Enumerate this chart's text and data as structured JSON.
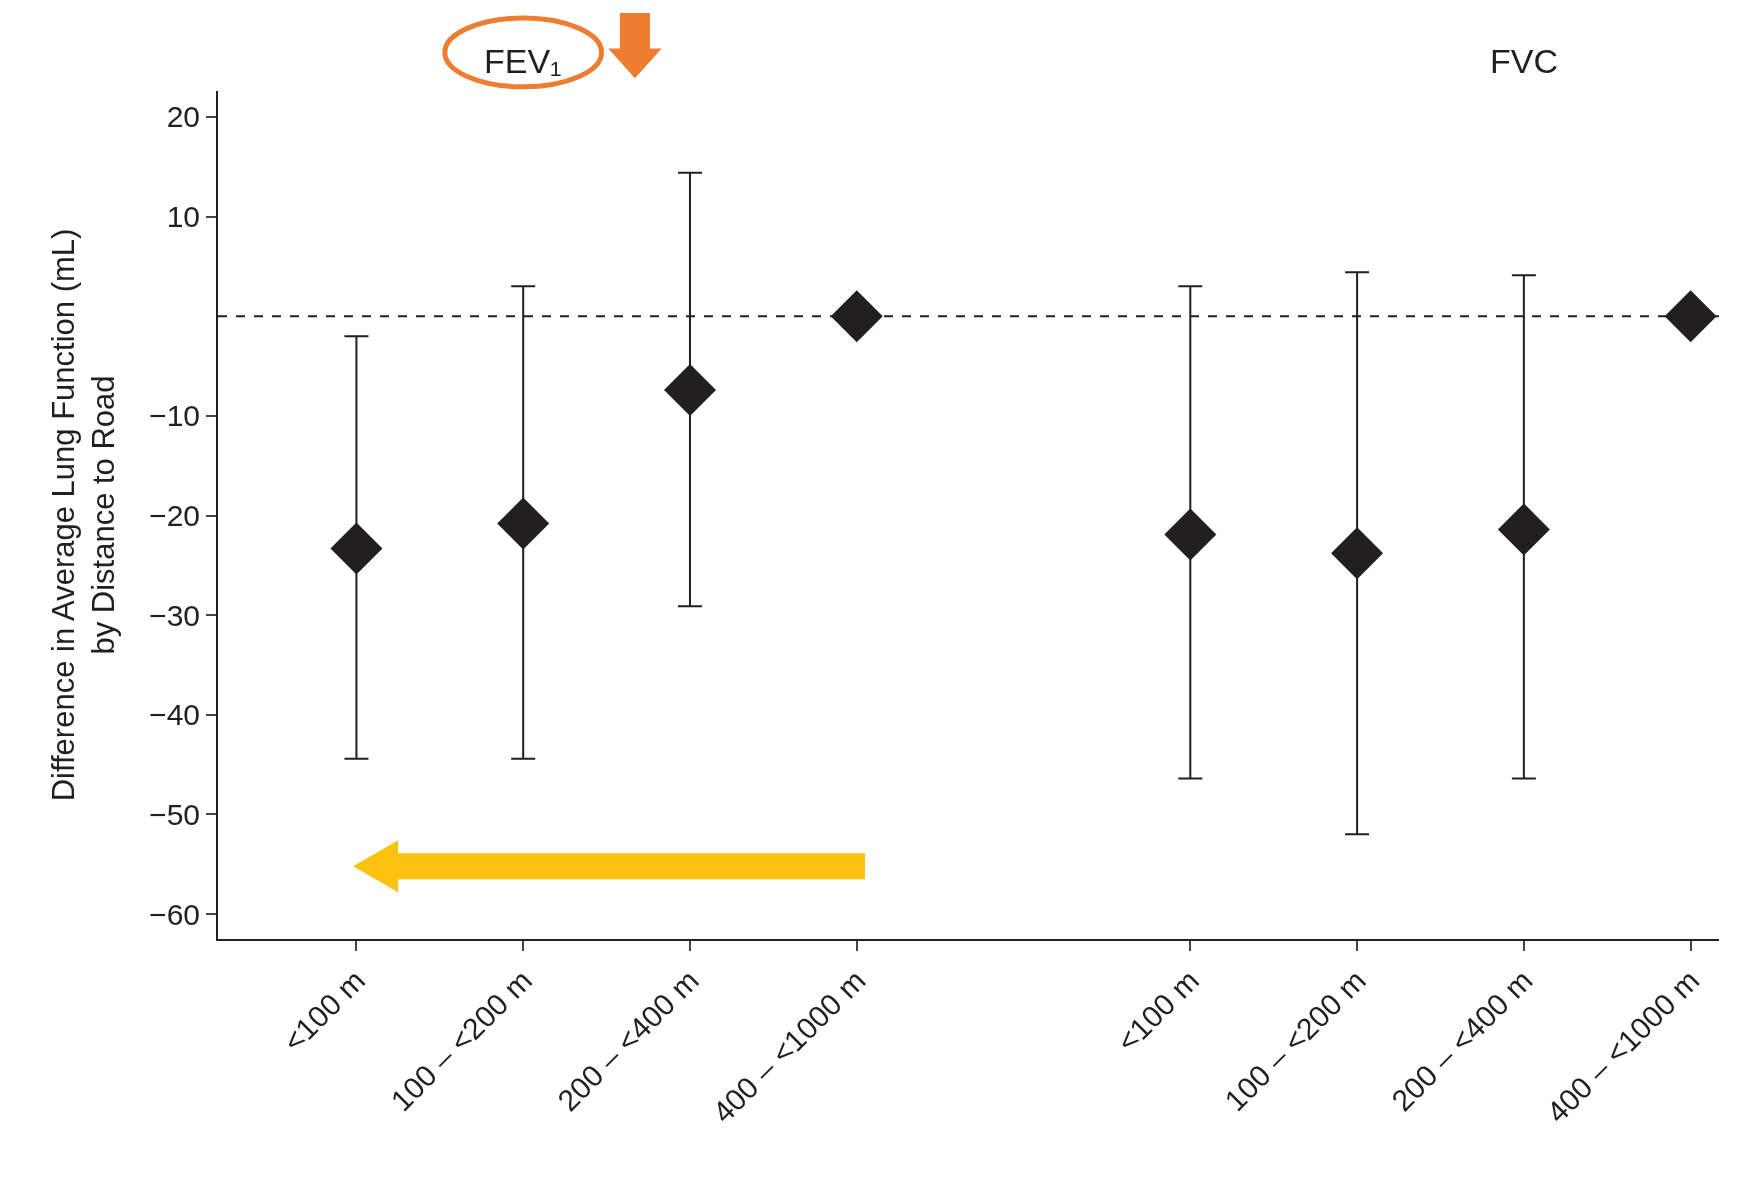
{
  "chart_data": {
    "type": "scatter",
    "ylabel": "Difference in Average Lung Function (mL)\nby Distance to Road",
    "annotations": [
      "FEV₁",
      "FVC"
    ],
    "categories": [
      "<100 m",
      "100 – <200 m",
      "200 – <400 m",
      "400 – <1000 m",
      null,
      "<100 m",
      "100 – <200 m",
      "200 – <400 m",
      "400 – <1000 m"
    ],
    "series": [
      {
        "color": "#231f20",
        "values": [
          -23.3,
          -20.8,
          -7.4,
          0,
          null,
          -21.9,
          -23.8,
          -21.4,
          0
        ],
        "errors": [
          [
            -44.4,
            -2.0
          ],
          [
            -44.4,
            3.0
          ],
          [
            -29.1,
            14.4
          ],
          null,
          null,
          [
            -46.4,
            3.0
          ],
          [
            -52.0,
            4.4
          ],
          [
            -46.4,
            4.1
          ],
          null
        ]
      }
    ],
    "marker": "diamond",
    "ylim": [
      -62.5,
      22.6
    ],
    "yticks": [
      {
        "value": 20,
        "label": "20"
      },
      {
        "value": 10,
        "label": "10"
      },
      {
        "value": -10,
        "label": "−10"
      },
      {
        "value": -20,
        "label": "−20"
      },
      {
        "value": -30,
        "label": "−30"
      },
      {
        "value": -40,
        "label": "−40"
      },
      {
        "value": -50,
        "label": "−50"
      },
      {
        "value": -60,
        "label": "−60"
      }
    ],
    "ref_lines": [
      {
        "axis": "y",
        "value": 0,
        "line_style": "dashed",
        "color": "#231f20"
      }
    ]
  }
}
